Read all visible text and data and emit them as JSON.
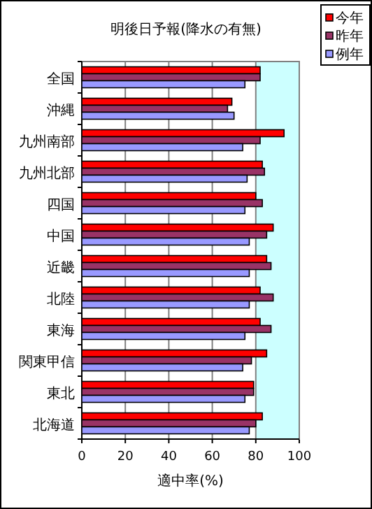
{
  "chart_data": {
    "type": "bar",
    "orientation": "horizontal",
    "title": "明後日予報(降水の有無)",
    "xlabel": "適中率(%)",
    "categories": [
      "全国",
      "沖縄",
      "九州南部",
      "九州北部",
      "四国",
      "中国",
      "近畿",
      "北陸",
      "東海",
      "関東甲信",
      "東北",
      "北海道"
    ],
    "series": [
      {
        "name": "今年",
        "color": "#ff0000",
        "values": [
          82,
          69,
          93,
          83,
          80,
          88,
          85,
          82,
          82,
          85,
          79,
          83
        ]
      },
      {
        "name": "昨年",
        "color": "#993366",
        "values": [
          82,
          67,
          82,
          84,
          83,
          85,
          87,
          88,
          87,
          78,
          79,
          80
        ]
      },
      {
        "name": "例年",
        "color": "#9999ff",
        "values": [
          75,
          70,
          74,
          76,
          75,
          77,
          77,
          77,
          75,
          74,
          75,
          77
        ]
      }
    ],
    "xlim": [
      0,
      100
    ],
    "xticks": [
      0,
      20,
      40,
      60,
      80,
      100
    ],
    "bands": [
      {
        "axis": "x",
        "from": 80,
        "to": 100,
        "color": "#ccffff"
      }
    ],
    "grid": "x",
    "legend": "top right"
  }
}
